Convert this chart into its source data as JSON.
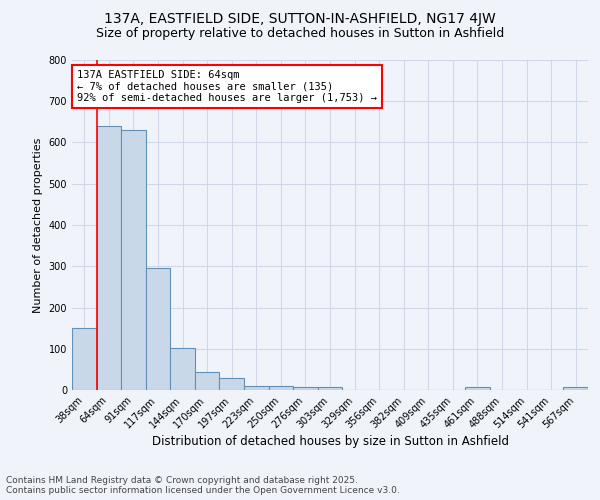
{
  "title": "137A, EASTFIELD SIDE, SUTTON-IN-ASHFIELD, NG17 4JW",
  "subtitle": "Size of property relative to detached houses in Sutton in Ashfield",
  "xlabel": "Distribution of detached houses by size in Sutton in Ashfield",
  "ylabel": "Number of detached properties",
  "categories": [
    "38sqm",
    "64sqm",
    "91sqm",
    "117sqm",
    "144sqm",
    "170sqm",
    "197sqm",
    "223sqm",
    "250sqm",
    "276sqm",
    "303sqm",
    "329sqm",
    "356sqm",
    "382sqm",
    "409sqm",
    "435sqm",
    "461sqm",
    "488sqm",
    "514sqm",
    "541sqm",
    "567sqm"
  ],
  "values": [
    150,
    640,
    630,
    295,
    103,
    43,
    30,
    10,
    10,
    8,
    8,
    1,
    1,
    1,
    1,
    0,
    8,
    0,
    0,
    0,
    8
  ],
  "bar_color": "#c8d8e8",
  "bar_edge_color": "#6090b8",
  "red_line_index": 1,
  "annotation_text": "137A EASTFIELD SIDE: 64sqm\n← 7% of detached houses are smaller (135)\n92% of semi-detached houses are larger (1,753) →",
  "annotation_box_color": "white",
  "annotation_box_edge_color": "red",
  "ylim": [
    0,
    800
  ],
  "yticks": [
    0,
    100,
    200,
    300,
    400,
    500,
    600,
    700,
    800
  ],
  "grid_color": "#d0d8e8",
  "background_color": "#f0f4fa",
  "footer_line1": "Contains HM Land Registry data © Crown copyright and database right 2025.",
  "footer_line2": "Contains public sector information licensed under the Open Government Licence v3.0.",
  "title_fontsize": 10,
  "subtitle_fontsize": 9,
  "xlabel_fontsize": 8.5,
  "ylabel_fontsize": 8,
  "tick_fontsize": 7,
  "annotation_fontsize": 7.5,
  "footer_fontsize": 6.5
}
